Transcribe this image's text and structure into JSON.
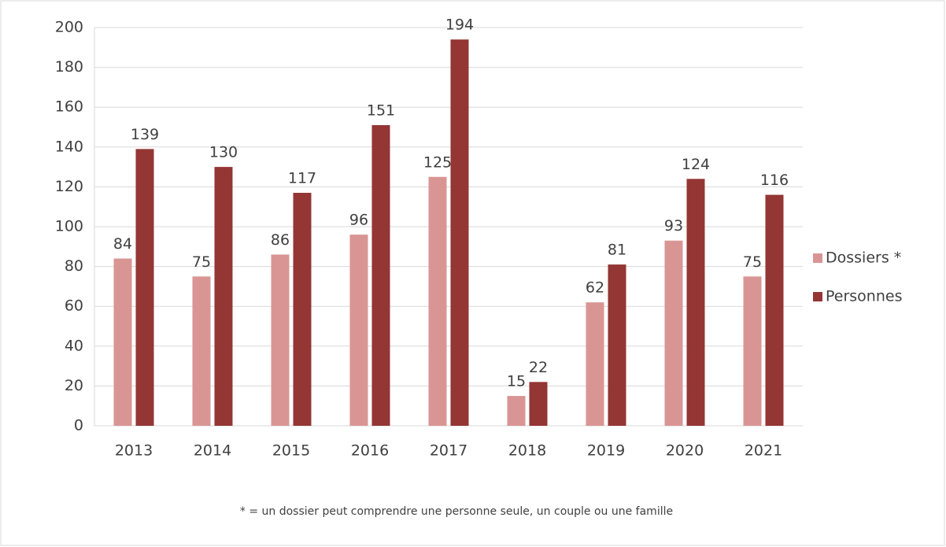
{
  "chart_data": {
    "type": "bar",
    "categories": [
      "2013",
      "2014",
      "2015",
      "2016",
      "2017",
      "2018",
      "2019",
      "2020",
      "2021"
    ],
    "series": [
      {
        "name": "Dossiers *",
        "color": "#d99594",
        "values": [
          84,
          75,
          86,
          96,
          125,
          15,
          62,
          93,
          75
        ]
      },
      {
        "name": "Personnes",
        "color": "#943634",
        "values": [
          139,
          130,
          117,
          151,
          194,
          22,
          81,
          124,
          116
        ]
      }
    ],
    "ylim": [
      0,
      200
    ],
    "yticks": [
      0,
      20,
      40,
      60,
      80,
      100,
      120,
      140,
      160,
      180,
      200
    ],
    "grid": true,
    "legend": "right",
    "annotation": "* = un dossier peut comprendre une personne seule, un couple ou une famille"
  }
}
